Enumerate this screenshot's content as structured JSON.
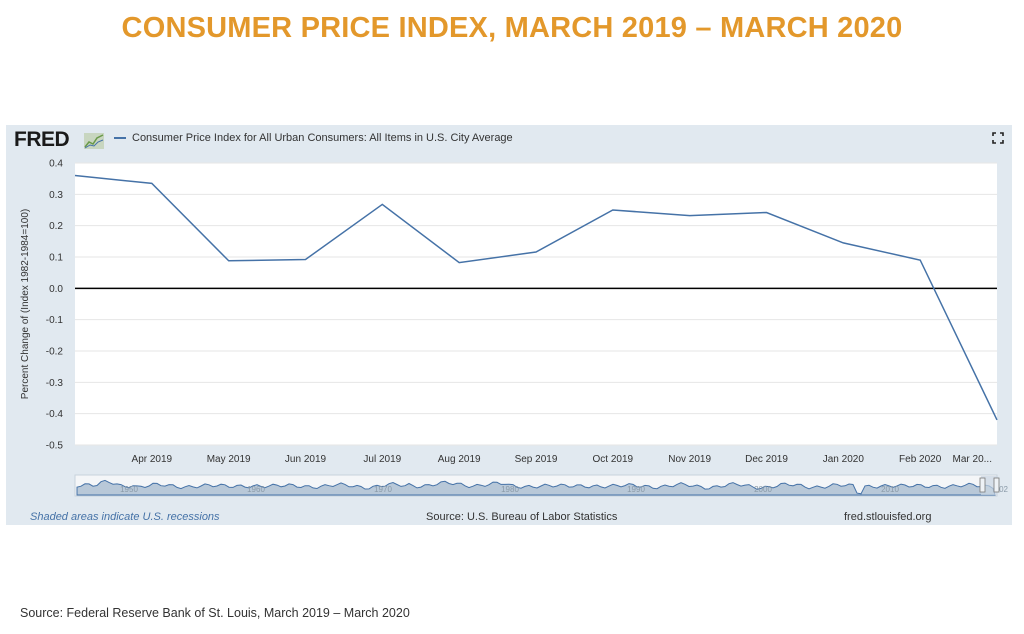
{
  "page": {
    "title": "CONSUMER PRICE INDEX, MARCH 2019 – MARCH 2020",
    "source_note": "Source: Federal Reserve Bank of St. Louis, March 2019 – March 2020"
  },
  "fred": {
    "logo_text": "FRED",
    "legend_label": "Consumer Price Index for All Urban Consumers: All Items in U.S. City Average",
    "recession_note": "Shaded areas indicate U.S. recessions",
    "data_source": "Source: U.S. Bureau of Labor Statistics",
    "site": "fred.stlouisfed.org",
    "navigator_labels": [
      "1950",
      "1960",
      "1970",
      "1980",
      "1990",
      "2000",
      "2010",
      "202"
    ]
  },
  "colors": {
    "title": "#e3982b",
    "series": "#4572a7",
    "panel": "#e1e9f0",
    "zero_line": "#000000"
  },
  "chart_data": {
    "type": "line",
    "title": "",
    "xlabel": "",
    "ylabel": "Percent Change of (Index 1982-1984=100)",
    "ylim": [
      -0.5,
      0.4
    ],
    "yticks": [
      "0.4",
      "0.3",
      "0.2",
      "0.1",
      "0.0",
      "-0.1",
      "-0.2",
      "-0.3",
      "-0.4",
      "-0.5"
    ],
    "x": [
      "Mar 2019",
      "Apr 2019",
      "May 2019",
      "Jun 2019",
      "Jul 2019",
      "Aug 2019",
      "Sep 2019",
      "Oct 2019",
      "Nov 2019",
      "Dec 2019",
      "Jan 2020",
      "Feb 2020",
      "Mar 2020"
    ],
    "xtick_labels": [
      "Apr 2019",
      "May 2019",
      "Jun 2019",
      "Jul 2019",
      "Aug 2019",
      "Sep 2019",
      "Oct 2019",
      "Nov 2019",
      "Dec 2019",
      "Jan 2020",
      "Feb 2020",
      "Mar 20..."
    ],
    "series": [
      {
        "name": "Consumer Price Index for All Urban Consumers: All Items in U.S. City Average",
        "values": [
          0.36,
          0.335,
          0.088,
          0.092,
          0.268,
          0.082,
          0.116,
          0.25,
          0.232,
          0.242,
          0.145,
          0.09,
          -0.42
        ]
      }
    ],
    "grid": true,
    "zero_line": true
  }
}
